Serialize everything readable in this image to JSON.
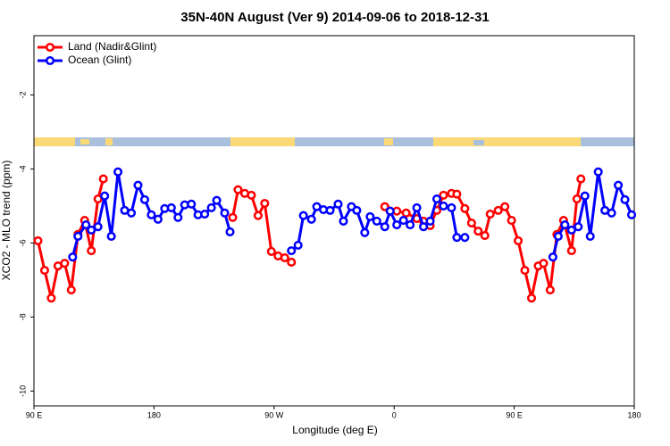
{
  "chart_data": {
    "type": "line",
    "title": "35N-40N August (Ver 9)   2014-09-06 to 2018-12-31",
    "x_label": "Longitude (deg E)",
    "y_label": "XCO2 - MLO trend (ppm)",
    "xlim": [
      -270,
      180
    ],
    "xticks": [
      {
        "value": -270,
        "label": "90 E"
      },
      {
        "value": -180,
        "label": "180"
      },
      {
        "value": -90,
        "label": "90 W"
      },
      0,
      {
        "value": 90,
        "label": "90 E"
      },
      {
        "value": 180,
        "label": "180"
      }
    ],
    "ylim": [
      -10.4,
      -0.4
    ],
    "yticks": [
      -10,
      -8,
      -6,
      -4,
      -2
    ],
    "legend": "top-left",
    "series": [
      {
        "name": "Land (Nadir&Glint)",
        "color": "#ff0000",
        "x": [
          -267,
          -262,
          -257,
          -252,
          -247,
          -242,
          -237,
          -232,
          -227,
          -222,
          -218,
          null,
          -121,
          -117,
          -112,
          -107,
          -102,
          -97,
          -92,
          -87,
          -82,
          -77,
          null,
          -7,
          -3,
          2,
          9,
          17,
          22,
          27,
          32,
          37,
          43,
          47,
          53,
          58,
          63,
          68,
          72,
          78,
          83,
          88,
          93,
          98,
          103,
          108,
          112,
          117,
          122,
          127,
          133,
          137,
          140
        ],
        "values": [
          -5.94,
          -6.74,
          -7.49,
          -6.62,
          -6.55,
          -7.27,
          -5.77,
          -5.39,
          -6.21,
          -4.81,
          -4.27,
          null,
          -5.31,
          -4.56,
          -4.66,
          -4.71,
          -5.26,
          -4.93,
          -6.23,
          -6.35,
          -6.4,
          -6.52,
          null,
          -5.02,
          -5.14,
          -5.14,
          -5.19,
          -5.34,
          -5.41,
          -5.53,
          -5.12,
          -4.71,
          -4.66,
          -4.68,
          -5.07,
          -5.46,
          -5.68,
          -5.8,
          -5.22,
          -5.12,
          -5.02,
          -5.39,
          -5.94,
          -6.74,
          -7.49,
          -6.62,
          -6.55,
          -7.27,
          -5.77,
          -5.39,
          -6.21,
          -4.81,
          -4.27
        ]
      },
      {
        "name": "Ocean (Glint)",
        "color": "#0000ff",
        "x": [
          -241,
          -237,
          -231,
          -227,
          -222,
          -217,
          -212,
          -207,
          -202,
          -197,
          -192,
          -187,
          -182,
          -177,
          -172,
          -167,
          -162,
          -157,
          -152,
          -147,
          -142,
          -137,
          -133,
          -127,
          -123,
          null,
          -77,
          -72,
          -68,
          -62,
          -58,
          -53,
          -48,
          -42,
          -38,
          -32,
          -28,
          -22,
          -18,
          -13,
          -7,
          -3,
          2,
          7,
          12,
          17,
          22,
          27,
          32,
          37,
          43,
          47,
          53,
          null,
          119,
          123,
          128,
          133,
          138,
          143,
          147,
          153,
          158,
          163,
          168,
          173,
          178
        ],
        "values": [
          -6.38,
          -5.82,
          -5.51,
          -5.65,
          -5.56,
          -4.73,
          -5.82,
          -4.08,
          -5.12,
          -5.19,
          -4.44,
          -4.83,
          -5.24,
          -5.36,
          -5.07,
          -5.05,
          -5.31,
          -4.97,
          -4.95,
          -5.24,
          -5.22,
          -5.05,
          -4.85,
          -5.19,
          -5.7,
          null,
          -6.21,
          -6.06,
          -5.26,
          -5.36,
          -5.02,
          -5.1,
          -5.12,
          -4.95,
          -5.41,
          -5.02,
          -5.12,
          -5.72,
          -5.29,
          -5.41,
          -5.56,
          -5.14,
          -5.51,
          -5.39,
          -5.51,
          -5.05,
          -5.56,
          -5.41,
          -4.81,
          -5.0,
          -5.05,
          -5.85,
          -5.85,
          null,
          -6.38,
          -5.82,
          -5.51,
          -5.65,
          -5.56,
          -4.73,
          -5.82,
          -4.08,
          -5.12,
          -5.19,
          -4.44,
          -4.83,
          -5.24
        ]
      }
    ]
  }
}
